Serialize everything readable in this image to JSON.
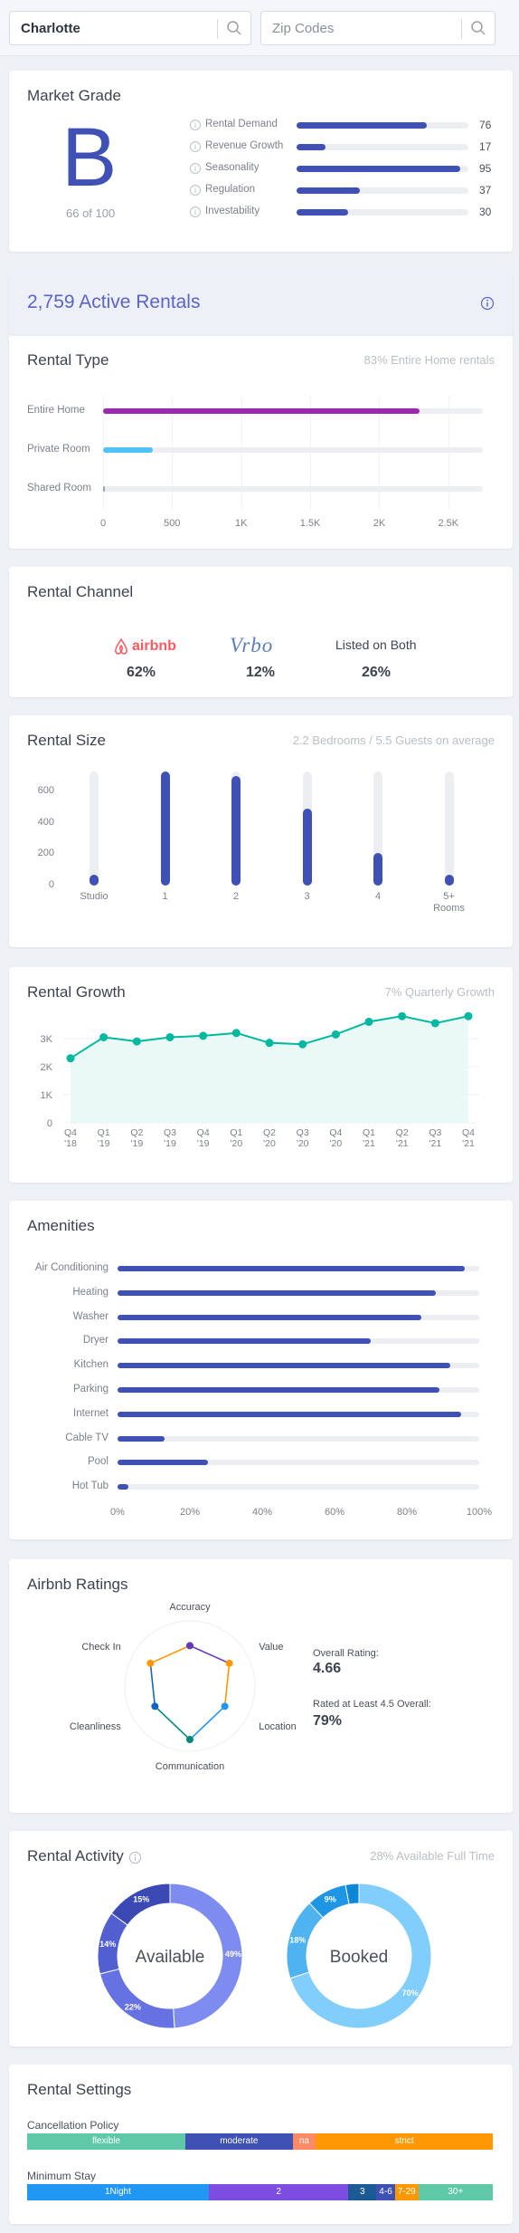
{
  "search": {
    "city_value": "Charlotte",
    "zip_placeholder": "Zip Codes"
  },
  "market_grade": {
    "title": "Market Grade",
    "grade": "B",
    "score_text": "66 of 100",
    "metrics": [
      {
        "label": "Rental Demand",
        "value": 76
      },
      {
        "label": "Revenue Growth",
        "value": 17
      },
      {
        "label": "Seasonality",
        "value": 95
      },
      {
        "label": "Regulation",
        "value": 37
      },
      {
        "label": "Investability",
        "value": 30
      }
    ]
  },
  "active_rentals": {
    "title": "2,759 Active Rentals"
  },
  "rental_type": {
    "title": "Rental Type",
    "subtitle": "83% Entire Home rentals",
    "chart_data": {
      "type": "bar",
      "orientation": "horizontal",
      "categories": [
        "Entire Home",
        "Private Room",
        "Shared Room"
      ],
      "values": [
        2290,
        360,
        10
      ],
      "xlim": [
        0,
        2750
      ],
      "xticks": [
        0,
        500,
        1000,
        1500,
        2000,
        2500
      ],
      "xtick_labels": [
        "0",
        "500",
        "1K",
        "1.5K",
        "2K",
        "2.5K"
      ],
      "colors": [
        "#9c27b0",
        "#4fc3f7",
        "#90a4ae"
      ]
    }
  },
  "rental_channel": {
    "title": "Rental Channel",
    "items": [
      {
        "name": "airbnb",
        "percent": "62%"
      },
      {
        "name": "Vrbo",
        "percent": "12%"
      },
      {
        "name": "Listed on Both",
        "percent": "26%"
      }
    ]
  },
  "rental_size": {
    "title": "Rental Size",
    "subtitle": "2.2 Bedrooms / 5.5 Guests on average",
    "chart_data": {
      "type": "bar",
      "categories": [
        "Studio",
        "1",
        "2",
        "3",
        "4",
        "5+\nRooms"
      ],
      "values": [
        70,
        730,
        700,
        490,
        210,
        70
      ],
      "ylim": [
        0,
        730
      ],
      "yticks": [
        0,
        200,
        400,
        600
      ],
      "color": "#3f51b5"
    }
  },
  "rental_growth": {
    "title": "Rental Growth",
    "subtitle": "7% Quarterly Growth",
    "chart_data": {
      "type": "area",
      "x": [
        "Q4\n'18",
        "Q1\n'19",
        "Q2\n'19",
        "Q3\n'19",
        "Q4\n'19",
        "Q1\n'20",
        "Q2\n'20",
        "Q3\n'20",
        "Q4\n'20",
        "Q1\n'21",
        "Q2\n'21",
        "Q3\n'21",
        "Q4\n'21"
      ],
      "values": [
        2300,
        3050,
        2900,
        3050,
        3100,
        3200,
        2850,
        2800,
        3150,
        3600,
        3800,
        3550,
        3800
      ],
      "ylim": [
        0,
        4000
      ],
      "yticks": [
        0,
        1000,
        2000,
        3000
      ],
      "ytick_labels": [
        "0",
        "1K",
        "2K",
        "3K"
      ],
      "color": "#00b8a0"
    }
  },
  "amenities": {
    "title": "Amenities",
    "chart_data": {
      "type": "bar",
      "orientation": "horizontal",
      "categories": [
        "Air Conditioning",
        "Heating",
        "Washer",
        "Dryer",
        "Kitchen",
        "Parking",
        "Internet",
        "Cable TV",
        "Pool",
        "Hot Tub"
      ],
      "values": [
        96,
        88,
        84,
        70,
        92,
        89,
        95,
        13,
        25,
        3
      ],
      "xlim": [
        0,
        100
      ],
      "xticks": [
        0,
        20,
        40,
        60,
        80,
        100
      ],
      "xtick_labels": [
        "0%",
        "20%",
        "40%",
        "60%",
        "80%",
        "100%"
      ],
      "color": "#3f51b5"
    }
  },
  "airbnb_ratings": {
    "title": "Airbnb Ratings",
    "overall_label": "Overall Rating:",
    "overall_value": "4.66",
    "rated_label": "Rated at Least 4.5 Overall:",
    "rated_value": "79%",
    "chart_data": {
      "type": "radar",
      "axes": [
        "Accuracy",
        "Value",
        "Location",
        "Communication",
        "Cleanliness",
        "Check In"
      ],
      "values": [
        0.62,
        0.7,
        0.62,
        0.82,
        0.62,
        0.7
      ],
      "point_colors": [
        "#673ab7",
        "#ff9800",
        "#2196f3",
        "#00897b",
        "#1565c0",
        "#ff9800"
      ]
    }
  },
  "rental_activity": {
    "title": "Rental Activity",
    "subtitle": "28% Available Full Time",
    "chart_data": [
      {
        "type": "pie",
        "center_label": "Available",
        "slices": [
          {
            "value": 49,
            "label": "49%",
            "color": "#7f8cef"
          },
          {
            "value": 22,
            "label": "22%",
            "color": "#6672e2"
          },
          {
            "value": 14,
            "label": "14%",
            "color": "#525fd0"
          },
          {
            "value": 15,
            "label": "15%",
            "color": "#3b49b5"
          }
        ]
      },
      {
        "type": "pie",
        "center_label": "Booked",
        "slices": [
          {
            "value": 70,
            "label": "70%",
            "color": "#81cdfb"
          },
          {
            "value": 18,
            "label": "18%",
            "color": "#4fb3f0"
          },
          {
            "value": 9,
            "label": "9%",
            "color": "#1e96e3"
          },
          {
            "value": 3,
            "label": "",
            "color": "#0d86d8"
          }
        ]
      }
    ]
  },
  "rental_settings": {
    "title": "Rental Settings",
    "cancellation": {
      "label": "Cancellation Policy",
      "segments": [
        {
          "label": "flexible",
          "value": 34,
          "color": "#5fc9a7"
        },
        {
          "label": "moderate",
          "value": 23,
          "color": "#3f51b5"
        },
        {
          "label": "na",
          "value": 5,
          "color": "#ff8a65"
        },
        {
          "label": "strict",
          "value": 38,
          "color": "#ff9800"
        }
      ]
    },
    "minimum_stay": {
      "label": "Minimum Stay",
      "segments": [
        {
          "label": "1Night",
          "value": 39,
          "color": "#2196f3"
        },
        {
          "label": "2",
          "value": 30,
          "color": "#7c4de0"
        },
        {
          "label": "3",
          "value": 6,
          "color": "#1c5a96"
        },
        {
          "label": "4-6",
          "value": 4,
          "color": "#3f51b5"
        },
        {
          "label": "7-29",
          "value": 5,
          "color": "#ff9800"
        },
        {
          "label": "30+",
          "value": 16,
          "color": "#5fc9a7"
        }
      ]
    }
  }
}
